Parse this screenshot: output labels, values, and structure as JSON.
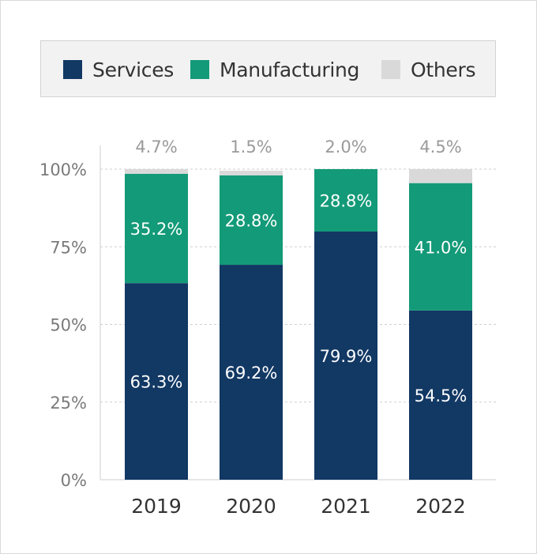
{
  "chart_data": {
    "type": "bar",
    "stacked": true,
    "categories": [
      "2019",
      "2020",
      "2021",
      "2022"
    ],
    "series": [
      {
        "name": "Services",
        "values": [
          63.3,
          69.2,
          79.9,
          54.5
        ],
        "color": "#123864",
        "labels": [
          "63.3%",
          "69.2%",
          "79.9%",
          "54.5%"
        ]
      },
      {
        "name": "Manufacturing",
        "values": [
          35.2,
          28.8,
          28.8,
          41.0
        ],
        "color": "#139a78",
        "labels": [
          "35.2%",
          "28.8%",
          "28.8%",
          "41.0%"
        ]
      },
      {
        "name": "Others",
        "values": [
          4.7,
          1.5,
          2.0,
          4.5
        ],
        "color": "#d9d9d9",
        "labels": [
          "4.7%",
          "1.5%",
          "2.0%",
          "4.5%"
        ]
      }
    ],
    "yticks": [
      "0%",
      "25%",
      "50%",
      "75%",
      "100%"
    ],
    "ylim": [
      0,
      100
    ],
    "grid": true,
    "legend_position": "top",
    "title": "",
    "xlabel": "",
    "ylabel": ""
  }
}
